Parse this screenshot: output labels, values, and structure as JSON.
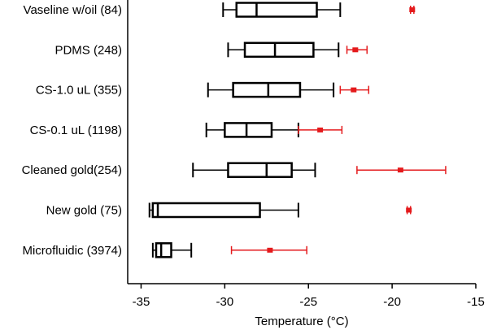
{
  "chart_data": {
    "type": "boxplot",
    "title": "",
    "xlabel": "Temperature (°C)",
    "ylabel": "",
    "xlim": [
      -35.8,
      -15
    ],
    "x_ticks": [
      -35,
      -30,
      -25,
      -20,
      -15
    ],
    "x_tick_labels": [
      "-35",
      "-30",
      "-25",
      "-20",
      "-15"
    ],
    "grid": false,
    "colors": {
      "box": "#000000",
      "mean_marker": "#e41a1c"
    },
    "categories": [
      "Vaseline w/oil (84)",
      "PDMS (248)",
      "CS-1.0 uL (355)",
      "CS-0.1 uL (1198)",
      "Cleaned gold(254)",
      "New gold (75)",
      "Microfluidic (3974)"
    ],
    "boxes": [
      {
        "whisker_low": -30.1,
        "q1": -29.3,
        "median": -28.1,
        "q3": -24.5,
        "whisker_high": -23.1
      },
      {
        "whisker_low": -29.8,
        "q1": -28.8,
        "median": -27.0,
        "q3": -24.7,
        "whisker_high": -23.2
      },
      {
        "whisker_low": -31.0,
        "q1": -29.5,
        "median": -27.4,
        "q3": -25.5,
        "whisker_high": -23.5
      },
      {
        "whisker_low": -31.1,
        "q1": -30.0,
        "median": -28.7,
        "q3": -27.2,
        "whisker_high": -25.6
      },
      {
        "whisker_low": -31.9,
        "q1": -29.8,
        "median": -27.5,
        "q3": -26.0,
        "whisker_high": -24.6
      },
      {
        "whisker_low": -34.5,
        "q1": -34.3,
        "median": -34.0,
        "q3": -27.9,
        "whisker_high": -25.6
      },
      {
        "whisker_low": -34.3,
        "q1": -34.1,
        "median": -33.8,
        "q3": -33.2,
        "whisker_high": -32.0
      }
    ],
    "means": [
      {
        "mean": -18.8,
        "err_low": -18.9,
        "err_high": -18.7
      },
      {
        "mean": -22.2,
        "err_low": -22.7,
        "err_high": -21.5
      },
      {
        "mean": -22.3,
        "err_low": -23.1,
        "err_high": -21.4
      },
      {
        "mean": -24.3,
        "err_low": -25.6,
        "err_high": -23.0
      },
      {
        "mean": -19.5,
        "err_low": -22.1,
        "err_high": -16.8
      },
      {
        "mean": -19.0,
        "err_low": -19.1,
        "err_high": -18.9
      },
      {
        "mean": -27.3,
        "err_low": -29.6,
        "err_high": -25.1
      }
    ]
  }
}
